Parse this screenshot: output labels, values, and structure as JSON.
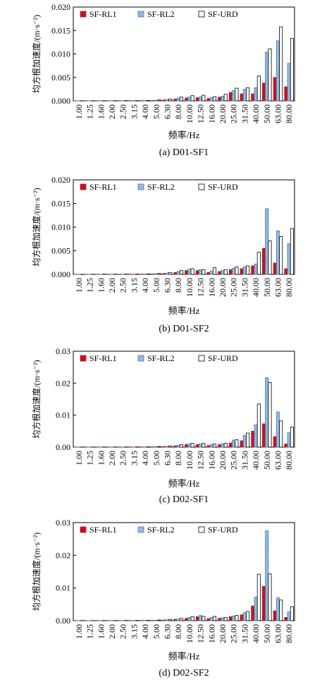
{
  "chart_data": [
    {
      "type": "bar",
      "caption": "(a) D01-SF1",
      "xlabel": "频率/Hz",
      "ylabel": "均方根加速度/(m·s⁻²)",
      "ylim": [
        0,
        0.02
      ],
      "yticks": [
        "0.000",
        "0.005",
        "0.010",
        "0.015",
        "0.020"
      ],
      "categories": [
        "1.00",
        "1.25",
        "1.60",
        "2.00",
        "2.50",
        "3.15",
        "4.00",
        "5.00",
        "6.30",
        "8.00",
        "10.00",
        "12.50",
        "16.00",
        "20.00",
        "25.00",
        "31.50",
        "40.00",
        "50.00",
        "63.00",
        "80.00"
      ],
      "legend_position": "top-right",
      "series": [
        {
          "name": "SF-RL1",
          "values": [
            2e-05,
            2e-05,
            3e-05,
            3e-05,
            4e-05,
            5e-05,
            6e-05,
            0.0001,
            0.0002,
            0.0004,
            0.0006,
            0.0007,
            0.0005,
            0.0008,
            0.0018,
            0.0015,
            0.0015,
            0.0038,
            0.005,
            0.003
          ]
        },
        {
          "name": "SF-RL2",
          "values": [
            2e-05,
            2e-05,
            3e-05,
            3e-05,
            4e-05,
            5e-05,
            7e-05,
            0.00015,
            0.0003,
            0.0006,
            0.0008,
            0.0009,
            0.0007,
            0.001,
            0.0022,
            0.0025,
            0.0028,
            0.0104,
            0.0128,
            0.008
          ]
        },
        {
          "name": "SF-URD",
          "values": [
            3e-05,
            3e-05,
            4e-05,
            4e-05,
            5e-05,
            6e-05,
            9e-05,
            0.0002,
            0.0004,
            0.0008,
            0.0011,
            0.0012,
            0.0009,
            0.0014,
            0.0027,
            0.0028,
            0.0053,
            0.0111,
            0.0158,
            0.0133
          ]
        }
      ]
    },
    {
      "type": "bar",
      "caption": "(b) D01-SF2",
      "xlabel": "频率/Hz",
      "ylabel": "均方根加速度/(m·s⁻²)",
      "ylim": [
        0,
        0.02
      ],
      "yticks": [
        "0.000",
        "0.005",
        "0.010",
        "0.015",
        "0.020"
      ],
      "categories": [
        "1.00",
        "1.25",
        "1.60",
        "2.00",
        "2.50",
        "3.15",
        "4.00",
        "5.00",
        "6.30",
        "8.00",
        "10.00",
        "12.50",
        "16.00",
        "20.00",
        "25.00",
        "31.50",
        "40.00",
        "50.00",
        "63.00",
        "80.00"
      ],
      "legend_position": "top-right",
      "series": [
        {
          "name": "SF-RL1",
          "values": [
            2e-05,
            2e-05,
            3e-05,
            3e-05,
            4e-05,
            5e-05,
            6e-05,
            0.0001,
            0.0002,
            0.0004,
            0.0008,
            0.0008,
            0.0004,
            0.0006,
            0.001,
            0.0012,
            0.0018,
            0.0055,
            0.0024,
            0.0012
          ]
        },
        {
          "name": "SF-RL2",
          "values": [
            2e-05,
            2e-05,
            3e-05,
            3e-05,
            4e-05,
            5e-05,
            7e-05,
            0.00015,
            0.0003,
            0.0006,
            0.0011,
            0.001,
            0.0007,
            0.0008,
            0.0013,
            0.0016,
            0.0022,
            0.0139,
            0.0092,
            0.0065
          ]
        },
        {
          "name": "SF-URD",
          "values": [
            3e-05,
            3e-05,
            4e-05,
            4e-05,
            5e-05,
            6e-05,
            9e-05,
            0.0002,
            0.0004,
            0.0008,
            0.0012,
            0.001,
            0.0014,
            0.001,
            0.0016,
            0.0018,
            0.0047,
            0.0071,
            0.008,
            0.0097
          ]
        }
      ]
    },
    {
      "type": "bar",
      "caption": "(c) D02-SF1",
      "xlabel": "频率/Hz",
      "ylabel": "均方根加速度/(m·s⁻²)",
      "ylim": [
        0,
        0.03
      ],
      "yticks": [
        "0.00",
        "0.01",
        "0.02",
        "0.03"
      ],
      "categories": [
        "1.00",
        "1.25",
        "1.60",
        "2.00",
        "2.50",
        "3.15",
        "4.00",
        "5.00",
        "6.30",
        "8.00",
        "10.00",
        "12.50",
        "16.00",
        "20.00",
        "25.00",
        "31.50",
        "40.00",
        "50.00",
        "63.00",
        "80.00"
      ],
      "legend_position": "top-right",
      "series": [
        {
          "name": "SF-RL1",
          "values": [
            3e-05,
            3e-05,
            4e-05,
            4e-05,
            5e-05,
            6e-05,
            8e-05,
            0.0001,
            0.0002,
            0.0004,
            0.0008,
            0.0008,
            0.0005,
            0.0008,
            0.0013,
            0.002,
            0.005,
            0.0073,
            0.0033,
            0.001
          ]
        },
        {
          "name": "SF-RL2",
          "values": [
            3e-05,
            3e-05,
            4e-05,
            4e-05,
            5e-05,
            6e-05,
            9e-05,
            0.00015,
            0.0003,
            0.0006,
            0.001,
            0.001,
            0.0008,
            0.0011,
            0.0022,
            0.0037,
            0.007,
            0.0217,
            0.011,
            0.0045
          ]
        },
        {
          "name": "SF-URD",
          "values": [
            4e-05,
            4e-05,
            5e-05,
            5e-05,
            6e-05,
            8e-05,
            0.0001,
            0.0002,
            0.0004,
            0.0008,
            0.0012,
            0.0012,
            0.001,
            0.0012,
            0.0023,
            0.0044,
            0.0135,
            0.0202,
            0.0082,
            0.0063
          ]
        }
      ]
    },
    {
      "type": "bar",
      "caption": "(d) D02-SF2",
      "xlabel": "频率/Hz",
      "ylabel": "均方根加速度/(m·s⁻²)",
      "ylim": [
        0,
        0.03
      ],
      "yticks": [
        "0.00",
        "0.01",
        "0.02",
        "0.03"
      ],
      "categories": [
        "1.00",
        "1.25",
        "1.60",
        "2.00",
        "2.50",
        "3.15",
        "4.00",
        "5.00",
        "6.30",
        "8.00",
        "10.00",
        "12.50",
        "16.00",
        "20.00",
        "25.00",
        "31.50",
        "40.00",
        "50.00",
        "63.00",
        "80.00"
      ],
      "legend_position": "top-right",
      "series": [
        {
          "name": "SF-RL1",
          "values": [
            3e-05,
            3e-05,
            4e-05,
            4e-05,
            5e-05,
            6e-05,
            8e-05,
            0.0001,
            0.0002,
            0.0004,
            0.0007,
            0.0012,
            0.0006,
            0.0007,
            0.0012,
            0.0018,
            0.0045,
            0.0105,
            0.003,
            0.001
          ]
        },
        {
          "name": "SF-RL2",
          "values": [
            3e-05,
            3e-05,
            4e-05,
            4e-05,
            5e-05,
            6e-05,
            9e-05,
            0.00015,
            0.0003,
            0.0005,
            0.001,
            0.0016,
            0.001,
            0.0009,
            0.0014,
            0.0025,
            0.0072,
            0.0275,
            0.007,
            0.0027
          ]
        },
        {
          "name": "SF-URD",
          "values": [
            4e-05,
            4e-05,
            5e-05,
            5e-05,
            6e-05,
            8e-05,
            0.0001,
            0.0002,
            0.0004,
            0.0007,
            0.0012,
            0.0013,
            0.0013,
            0.001,
            0.0016,
            0.0028,
            0.0142,
            0.0143,
            0.0063,
            0.0043
          ]
        }
      ]
    }
  ],
  "colors": {
    "rl1": "#c0171c",
    "rl2_stroke": "#3d7fc4",
    "urd_stroke": "#000000"
  }
}
